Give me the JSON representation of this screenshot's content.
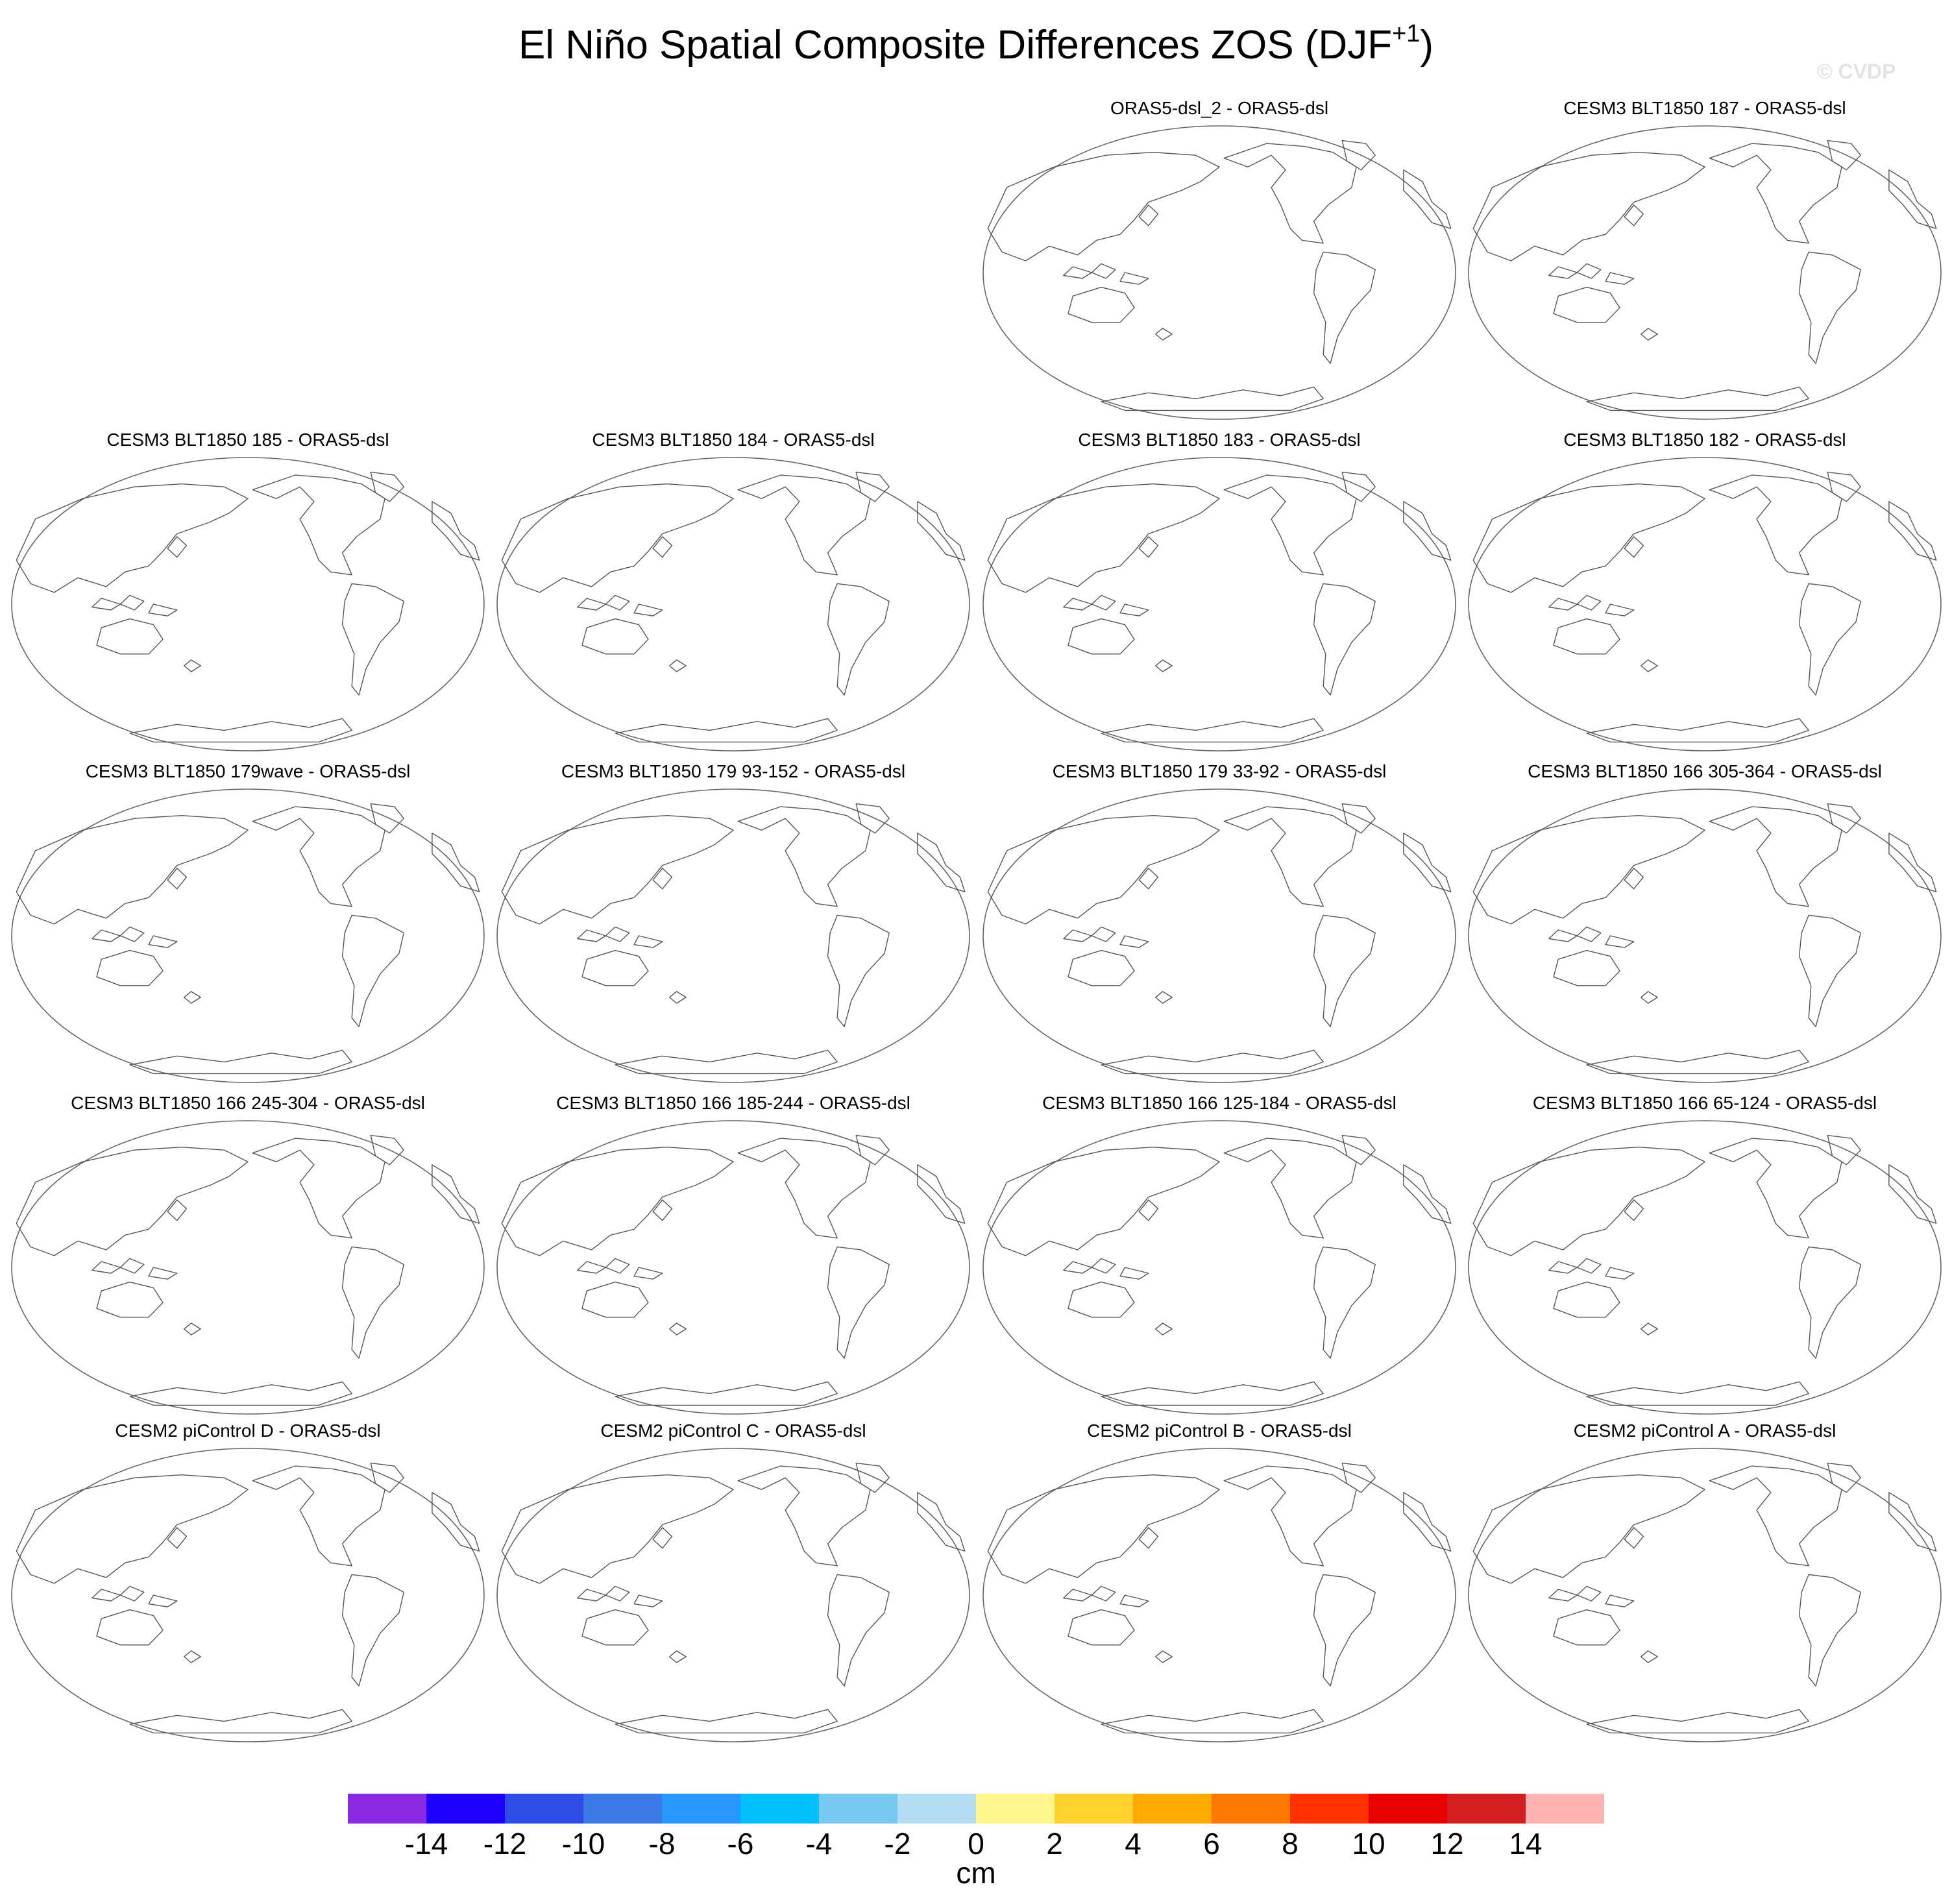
{
  "title": {
    "main": "El Niño Spatial Composite Differences ZOS (DJF",
    "superscript": "+1",
    "close": ")"
  },
  "watermark": "© CVDP",
  "panels": [
    {
      "row": 0,
      "col": 2,
      "label": "ORAS5-dsl_2 - ORAS5-dsl"
    },
    {
      "row": 0,
      "col": 3,
      "label": "CESM3 BLT1850 187 - ORAS5-dsl"
    },
    {
      "row": 1,
      "col": 0,
      "label": "CESM3 BLT1850 185 - ORAS5-dsl"
    },
    {
      "row": 1,
      "col": 1,
      "label": "CESM3 BLT1850 184 - ORAS5-dsl"
    },
    {
      "row": 1,
      "col": 2,
      "label": "CESM3 BLT1850 183 - ORAS5-dsl"
    },
    {
      "row": 1,
      "col": 3,
      "label": "CESM3 BLT1850 182 - ORAS5-dsl"
    },
    {
      "row": 2,
      "col": 0,
      "label": "CESM3 BLT1850 179wave - ORAS5-dsl"
    },
    {
      "row": 2,
      "col": 1,
      "label": "CESM3 BLT1850 179 93-152 - ORAS5-dsl"
    },
    {
      "row": 2,
      "col": 2,
      "label": "CESM3 BLT1850 179 33-92 - ORAS5-dsl"
    },
    {
      "row": 2,
      "col": 3,
      "label": "CESM3 BLT1850 166 305-364 - ORAS5-dsl"
    },
    {
      "row": 3,
      "col": 0,
      "label": "CESM3 BLT1850 166 245-304 - ORAS5-dsl"
    },
    {
      "row": 3,
      "col": 1,
      "label": "CESM3 BLT1850 166 185-244 - ORAS5-dsl"
    },
    {
      "row": 3,
      "col": 2,
      "label": "CESM3 BLT1850 166 125-184 - ORAS5-dsl"
    },
    {
      "row": 3,
      "col": 3,
      "label": "CESM3 BLT1850 166 65-124 - ORAS5-dsl"
    },
    {
      "row": 4,
      "col": 0,
      "label": "CESM2 piControl D - ORAS5-dsl"
    },
    {
      "row": 4,
      "col": 1,
      "label": "CESM2 piControl C - ORAS5-dsl"
    },
    {
      "row": 4,
      "col": 2,
      "label": "CESM2 piControl B - ORAS5-dsl"
    },
    {
      "row": 4,
      "col": 3,
      "label": "CESM2 piControl A - ORAS5-dsl"
    }
  ],
  "colorbar": {
    "colors": [
      "#8a2be2",
      "#1e00ff",
      "#2f4ce6",
      "#3a78e6",
      "#2896ff",
      "#00c0ff",
      "#78c8f0",
      "#b4dcf0",
      "#fff58c",
      "#ffd22d",
      "#ffaa00",
      "#ff7800",
      "#ff3200",
      "#e60000",
      "#d21e1e",
      "#ffb4b4"
    ],
    "ticks": [
      "-14",
      "-12",
      "-10",
      "-8",
      "-6",
      "-4",
      "-2",
      "0",
      "2",
      "4",
      "6",
      "8",
      "10",
      "12",
      "14"
    ],
    "units": "cm"
  }
}
